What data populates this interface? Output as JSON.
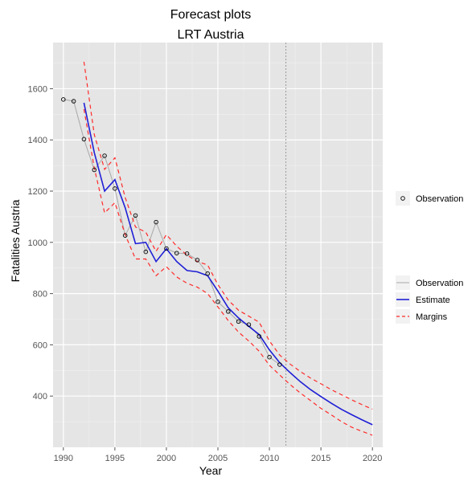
{
  "chart_data": {
    "type": "line",
    "title": "Forecast plots",
    "subtitle": "LRT Austria",
    "xlabel": "Year",
    "ylabel": "Fatalities Austria",
    "xlim": [
      1989,
      2021
    ],
    "ylim": [
      200,
      1780
    ],
    "xticks": [
      1990,
      1995,
      2000,
      2005,
      2010,
      2015,
      2020
    ],
    "yticks": [
      400,
      600,
      800,
      1000,
      1200,
      1400,
      1600
    ],
    "grid": true,
    "vline_x": 2011.6,
    "colors": {
      "panel": "#e5e5e5",
      "grid_major": "#ffffff",
      "grid_minor": "#f0f0f0",
      "observation": "#a8a8a8",
      "estimate": "#1f1fd6",
      "margins": "#ff2a2a",
      "vline": "#9a9a9a"
    },
    "series": [
      {
        "name": "Observation",
        "kind": "points-line",
        "x": [
          1990,
          1991,
          1992,
          1993,
          1994,
          1995,
          1996,
          1997,
          1998,
          1999,
          2000,
          2001,
          2002,
          2003,
          2004,
          2005,
          2006,
          2007,
          2008,
          2009,
          2010,
          2011
        ],
        "values": [
          1558,
          1551,
          1403,
          1283,
          1338,
          1210,
          1027,
          1105,
          963,
          1079,
          976,
          958,
          956,
          931,
          878,
          768,
          730,
          691,
          679,
          633,
          552,
          523
        ]
      },
      {
        "name": "Estimate",
        "kind": "line",
        "x": [
          1992,
          1993,
          1994,
          1995,
          1996,
          1997,
          1998,
          1999,
          2000,
          2001,
          2002,
          2003,
          2004,
          2005,
          2006,
          2007,
          2008,
          2009,
          2010,
          2011,
          2012,
          2013,
          2014,
          2015,
          2016,
          2017,
          2018,
          2019,
          2020
        ],
        "values": [
          1545,
          1350,
          1200,
          1245,
          1135,
          995,
          1000,
          925,
          975,
          925,
          890,
          885,
          870,
          810,
          745,
          705,
          672,
          640,
          580,
          530,
          492,
          456,
          425,
          398,
          372,
          348,
          327,
          307,
          288
        ]
      },
      {
        "name": "Margins",
        "kind": "dashed-band",
        "x": [
          1992,
          1993,
          1994,
          1995,
          1996,
          1997,
          1998,
          1999,
          2000,
          2001,
          2002,
          2003,
          2004,
          2005,
          2006,
          2007,
          2008,
          2009,
          2010,
          2011,
          2012,
          2013,
          2014,
          2015,
          2016,
          2017,
          2018,
          2019,
          2020
        ],
        "upper": [
          1705,
          1420,
          1285,
          1330,
          1175,
          1060,
          1040,
          965,
          1030,
          985,
          950,
          925,
          912,
          835,
          775,
          735,
          712,
          688,
          615,
          560,
          525,
          496,
          470,
          448,
          425,
          405,
          385,
          366,
          349
        ],
        "lower": [
          1520,
          1290,
          1115,
          1155,
          1030,
          935,
          935,
          870,
          905,
          865,
          840,
          825,
          800,
          748,
          695,
          650,
          615,
          575,
          520,
          482,
          445,
          412,
          382,
          352,
          327,
          300,
          278,
          262,
          247
        ]
      }
    ],
    "legends": [
      {
        "placement": "right",
        "entries": [
          {
            "label": "Observation",
            "kind": "point"
          }
        ]
      },
      {
        "placement": "right",
        "entries": [
          {
            "label": "Observation",
            "kind": "observation-line"
          },
          {
            "label": "Estimate",
            "kind": "estimate-line"
          },
          {
            "label": "Margins",
            "kind": "margins-line"
          }
        ]
      }
    ]
  }
}
